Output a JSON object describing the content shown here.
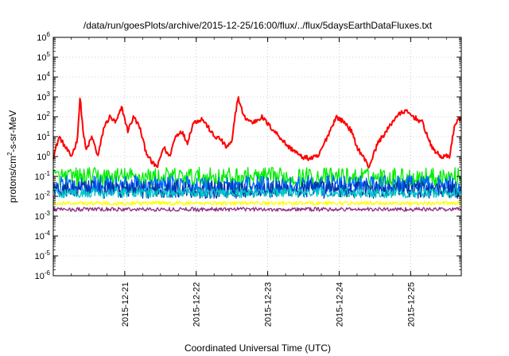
{
  "chart_data": {
    "type": "line",
    "title": "/data/run/goesPlots/archive/2015-12-25/16:00/flux/../flux/5daysEarthDataFluxes.txt",
    "xlabel": "Coordinated Universal Time (UTC)",
    "ylabel": {
      "pre": "protons/cm",
      "sup": "2",
      "post": "-s-sr-MeV"
    },
    "yscale": "log",
    "ylim": [
      1e-06,
      1000000.0
    ],
    "ytick_labels": [
      {
        "base": "10",
        "exp": "-6"
      },
      {
        "base": "10",
        "exp": "-5"
      },
      {
        "base": "10",
        "exp": "-4"
      },
      {
        "base": "10",
        "exp": "-3"
      },
      {
        "base": "10",
        "exp": "-2"
      },
      {
        "base": "10",
        "exp": "-1"
      },
      {
        "base": "10",
        "exp": "0"
      },
      {
        "base": "10",
        "exp": "1"
      },
      {
        "base": "10",
        "exp": "2"
      },
      {
        "base": "10",
        "exp": "3"
      },
      {
        "base": "10",
        "exp": "4"
      },
      {
        "base": "10",
        "exp": "5"
      },
      {
        "base": "10",
        "exp": "6"
      }
    ],
    "xlim": [
      "2015-12-20T00:00",
      "2015-12-25T17:00"
    ],
    "xtick_labels": [
      "2015-12-21",
      "2015-12-22",
      "2015-12-23",
      "2015-12-24",
      "2015-12-25"
    ],
    "grid": true,
    "legend": "none",
    "series": [
      {
        "color": "#ff0000",
        "noise": 0.12,
        "x": [
          "2015-12-20T00:00",
          "2015-12-20T02:00",
          "2015-12-20T04:00",
          "2015-12-20T06:00",
          "2015-12-20T08:00",
          "2015-12-20T09:00",
          "2015-12-20T10:00",
          "2015-12-20T11:00",
          "2015-12-20T13:00",
          "2015-12-20T15:00",
          "2015-12-20T17:00",
          "2015-12-20T19:00",
          "2015-12-20T21:00",
          "2015-12-20T23:00",
          "2015-12-21T01:00",
          "2015-12-21T03:00",
          "2015-12-21T05:00",
          "2015-12-21T07:00",
          "2015-12-21T09:00",
          "2015-12-21T11:00",
          "2015-12-21T13:00",
          "2015-12-21T15:00",
          "2015-12-21T17:00",
          "2015-12-21T19:00",
          "2015-12-21T21:00",
          "2015-12-21T23:00",
          "2015-12-22T02:00",
          "2015-12-22T04:00",
          "2015-12-22T06:00",
          "2015-12-22T08:00",
          "2015-12-22T10:00",
          "2015-12-22T12:00",
          "2015-12-22T13:00",
          "2015-12-22T14:00",
          "2015-12-22T16:00",
          "2015-12-22T19:00",
          "2015-12-22T22:00",
          "2015-12-23T01:00",
          "2015-12-23T04:00",
          "2015-12-23T07:00",
          "2015-12-23T09:00",
          "2015-12-23T11:00",
          "2015-12-23T14:00",
          "2015-12-23T17:00",
          "2015-12-23T20:00",
          "2015-12-23T23:00",
          "2015-12-24T02:00",
          "2015-12-24T04:00",
          "2015-12-24T06:00",
          "2015-12-24T08:00",
          "2015-12-24T10:00",
          "2015-12-24T13:00",
          "2015-12-24T16:00",
          "2015-12-24T19:00",
          "2015-12-24T22:00",
          "2015-12-25T01:00",
          "2015-12-25T04:00",
          "2015-12-25T07:00",
          "2015-12-25T10:00",
          "2015-12-25T13:00",
          "2015-12-25T15:00",
          "2015-12-25T17:00"
        ],
        "y": [
          1,
          10,
          3,
          1,
          6,
          1000,
          20,
          2,
          10,
          1,
          30,
          100,
          50,
          300,
          20,
          100,
          30,
          2,
          0.5,
          0.3,
          3,
          1,
          10,
          20,
          5,
          50,
          80,
          30,
          10,
          8,
          3,
          5,
          100,
          1000,
          100,
          50,
          100,
          30,
          10,
          3,
          2,
          1,
          0.8,
          1,
          10,
          100,
          50,
          20,
          3,
          1,
          0.3,
          5,
          20,
          100,
          200,
          100,
          50,
          3,
          1,
          1,
          50,
          100
        ]
      },
      {
        "color": "#00ee00",
        "noise": 0.5,
        "x": [
          "2015-12-20T00:00",
          "2015-12-25T17:00"
        ],
        "y": [
          0.09,
          0.09
        ]
      },
      {
        "color": "#0066ff",
        "noise": 0.5,
        "x": [
          "2015-12-20T00:00",
          "2015-12-25T17:00"
        ],
        "y": [
          0.035,
          0.035
        ]
      },
      {
        "color": "#0033aa",
        "noise": 0.45,
        "x": [
          "2015-12-20T00:00",
          "2015-12-25T17:00"
        ],
        "y": [
          0.022,
          0.022
        ]
      },
      {
        "color": "#00c8c8",
        "noise": 0.25,
        "x": [
          "2015-12-20T00:00",
          "2015-12-25T17:00"
        ],
        "y": [
          0.015,
          0.015
        ]
      },
      {
        "color": "#ffff00",
        "noise": 0.1,
        "x": [
          "2015-12-20T00:00",
          "2015-12-25T17:00"
        ],
        "y": [
          0.0045,
          0.0045
        ]
      },
      {
        "color": "#8b2a80",
        "noise": 0.1,
        "x": [
          "2015-12-20T00:00",
          "2015-12-25T17:00"
        ],
        "y": [
          0.0022,
          0.0022
        ]
      }
    ]
  }
}
